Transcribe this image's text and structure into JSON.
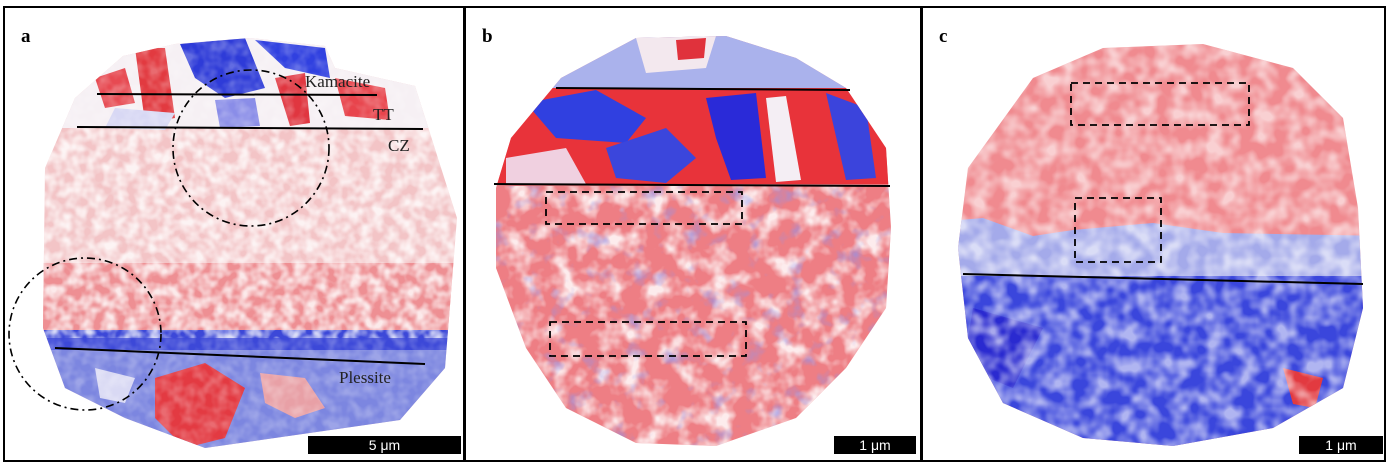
{
  "panels": [
    {
      "letter": "a",
      "labels": {
        "kamacite": "Kamacite",
        "tt": "TT",
        "cz": "CZ",
        "plessite": "Plessite"
      },
      "scale_bar": "5 μm"
    },
    {
      "letter": "b",
      "scale_bar": "1 μm"
    },
    {
      "letter": "c",
      "scale_bar": "1 μm"
    }
  ],
  "colors": {
    "red": "#e8333a",
    "blue": "#2a2ae0",
    "white": "#ffffff",
    "frame": "#000000"
  }
}
